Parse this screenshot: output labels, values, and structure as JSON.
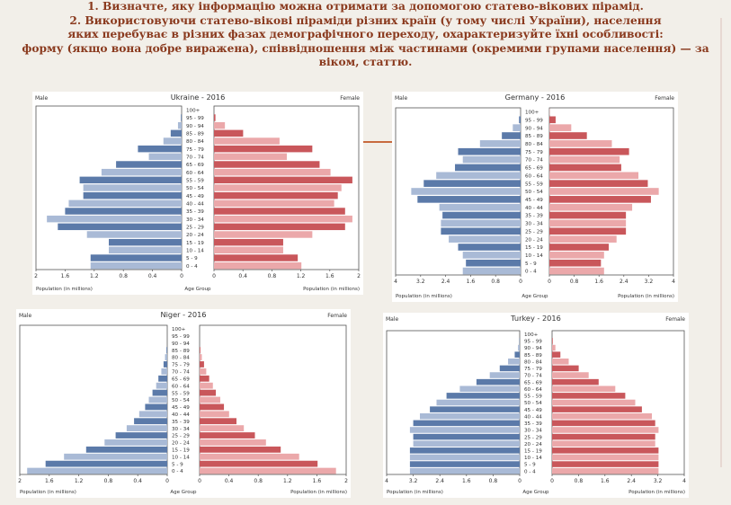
{
  "header": {
    "line1": "1. Визначте, яку інформацію можна отримати за допомогою статево-вікових пірамід.",
    "line2": "2. Використовуючи статево-вікові піраміди різних країн (у тому числі України), населення",
    "line3": "яких перебуває в різних фазах демографічного переходу, охарактеризуйте їхні особливості:",
    "line4": "форму (якщо вона добре виражена), співвідношення між частинами (окремими групами населення) — за",
    "line5": "віком, статтю."
  },
  "colors": {
    "male": "#5b7aa9",
    "male_light": "#a9bad6",
    "female": "#c9575b",
    "female_light": "#eba8aa",
    "header_text": "#8a3a1e"
  },
  "chart_data": [
    {
      "type": "bar",
      "title": "Ukraine - 2016",
      "male_label": "Male",
      "female_label": "Female",
      "xlabel_left": "Population (in millions)",
      "xlabel_center": "Age Group",
      "xlabel_right": "Population (in millions)",
      "categories": [
        "100+",
        "95 - 99",
        "90 - 94",
        "85 - 89",
        "80 - 84",
        "75 - 79",
        "70 - 74",
        "65 - 69",
        "60 - 64",
        "55 - 59",
        "50 - 54",
        "45 - 49",
        "40 - 44",
        "35 - 39",
        "30 - 34",
        "25 - 29",
        "20 - 24",
        "15 - 19",
        "10 - 14",
        "5 - 9",
        "0 - 4"
      ],
      "male": [
        0,
        0.01,
        0.05,
        0.15,
        0.25,
        0.6,
        0.45,
        0.9,
        1.1,
        1.4,
        1.35,
        1.35,
        1.55,
        1.6,
        1.85,
        1.7,
        1.3,
        1.0,
        1.0,
        1.25,
        1.25
      ],
      "female": [
        0,
        0.02,
        0.15,
        0.4,
        0.9,
        1.35,
        1.0,
        1.45,
        1.6,
        1.9,
        1.75,
        1.7,
        1.65,
        1.8,
        1.9,
        1.8,
        1.35,
        0.95,
        0.95,
        1.15,
        1.2
      ],
      "xticks_left": [
        "2",
        "1.6",
        "1.2",
        "0.8",
        "0.4",
        "0"
      ],
      "xticks_right": [
        "0",
        "0.4",
        "0.8",
        "1.2",
        "1.6",
        "2"
      ],
      "xmax": 2
    },
    {
      "type": "bar",
      "title": "Germany - 2016",
      "male_label": "Male",
      "female_label": "Female",
      "xlabel_left": "Population (in millions)",
      "xlabel_center": "Age Group",
      "xlabel_right": "Population (in millions)",
      "categories": [
        "100+",
        "95 - 99",
        "90 - 94",
        "85 - 89",
        "80 - 84",
        "75 - 79",
        "70 - 74",
        "65 - 69",
        "60 - 64",
        "55 - 59",
        "50 - 54",
        "45 - 49",
        "40 - 44",
        "35 - 39",
        "30 - 34",
        "25 - 29",
        "20 - 24",
        "15 - 19",
        "10 - 14",
        "5 - 9",
        "0 - 4"
      ],
      "male": [
        0,
        0.05,
        0.25,
        0.6,
        1.3,
        2.0,
        1.85,
        2.1,
        2.7,
        3.1,
        3.5,
        3.3,
        2.6,
        2.5,
        2.55,
        2.55,
        2.3,
        2.0,
        1.85,
        1.75,
        1.85
      ],
      "female": [
        0.01,
        0.2,
        0.7,
        1.2,
        2.0,
        2.55,
        2.25,
        2.3,
        2.85,
        3.15,
        3.5,
        3.25,
        2.65,
        2.45,
        2.45,
        2.45,
        2.15,
        1.9,
        1.75,
        1.65,
        1.75
      ],
      "xticks_left": [
        "4",
        "3.2",
        "2.4",
        "1.6",
        "0.8",
        "0"
      ],
      "xticks_right": [
        "0",
        "0.8",
        "1.6",
        "2.4",
        "3.2",
        "4"
      ],
      "xmax": 4
    },
    {
      "type": "bar",
      "title": "Niger - 2016",
      "male_label": "Male",
      "female_label": "Female",
      "xlabel_left": "Population (in millions)",
      "xlabel_center": "Age Group",
      "xlabel_right": "Population (in millions)",
      "categories": [
        "100+",
        "95 - 99",
        "90 - 94",
        "85 - 89",
        "80 - 84",
        "75 - 79",
        "70 - 74",
        "65 - 69",
        "60 - 64",
        "55 - 59",
        "50 - 54",
        "45 - 49",
        "40 - 44",
        "35 - 39",
        "30 - 34",
        "25 - 29",
        "20 - 24",
        "15 - 19",
        "10 - 14",
        "5 - 9",
        "0 - 4"
      ],
      "male": [
        0,
        0,
        0,
        0.01,
        0.03,
        0.05,
        0.08,
        0.12,
        0.15,
        0.2,
        0.25,
        0.3,
        0.38,
        0.45,
        0.55,
        0.7,
        0.85,
        1.1,
        1.4,
        1.65,
        1.9
      ],
      "female": [
        0,
        0,
        0,
        0.01,
        0.03,
        0.06,
        0.09,
        0.13,
        0.18,
        0.22,
        0.28,
        0.33,
        0.4,
        0.5,
        0.6,
        0.75,
        0.9,
        1.1,
        1.35,
        1.6,
        1.85
      ],
      "xticks_left": [
        "2",
        "1.6",
        "1.2",
        "0.8",
        "0.4",
        "0"
      ],
      "xticks_right": [
        "0",
        "0.4",
        "0.8",
        "1.2",
        "1.6",
        "2"
      ],
      "xmax": 2
    },
    {
      "type": "bar",
      "title": "Turkey - 2016",
      "male_label": "Male",
      "female_label": "Female",
      "xlabel_left": "Population (in millions)",
      "xlabel_center": "Age Group",
      "xlabel_right": "Population (in millions)",
      "categories": [
        "100+",
        "95 - 99",
        "90 - 94",
        "85 - 89",
        "80 - 84",
        "75 - 79",
        "70 - 74",
        "65 - 69",
        "60 - 64",
        "55 - 59",
        "50 - 54",
        "45 - 49",
        "40 - 44",
        "35 - 39",
        "30 - 34",
        "25 - 29",
        "20 - 24",
        "15 - 19",
        "10 - 14",
        "5 - 9",
        "0 - 4"
      ],
      "male": [
        0,
        0.01,
        0.05,
        0.15,
        0.35,
        0.6,
        0.9,
        1.3,
        1.8,
        2.2,
        2.5,
        2.7,
        3.0,
        3.2,
        3.3,
        3.2,
        3.2,
        3.3,
        3.3,
        3.3,
        3.3
      ],
      "female": [
        0,
        0.02,
        0.1,
        0.25,
        0.5,
        0.8,
        1.1,
        1.4,
        1.9,
        2.2,
        2.5,
        2.7,
        3.0,
        3.1,
        3.2,
        3.1,
        3.1,
        3.2,
        3.2,
        3.2,
        3.2
      ],
      "xticks_left": [
        "4",
        "3.2",
        "2.4",
        "1.6",
        "0.8",
        "0"
      ],
      "xticks_right": [
        "0",
        "0.8",
        "1.6",
        "2.4",
        "3.2",
        "4"
      ],
      "xmax": 4
    }
  ]
}
